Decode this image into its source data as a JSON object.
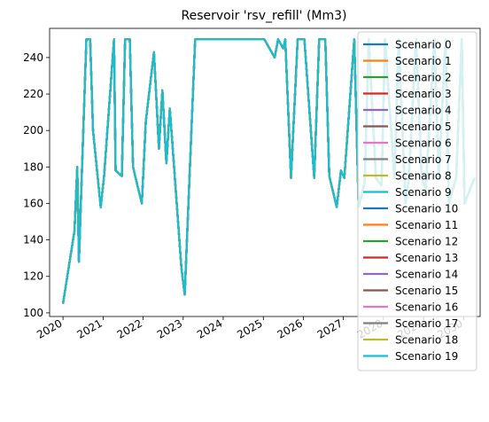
{
  "chart_data": {
    "type": "line",
    "title": "Reservoir 'rsv_refill' (Mm3)",
    "xlabel": "",
    "ylabel": "",
    "x_range": [
      "2019-09-01",
      "2030-06-01"
    ],
    "ylim": [
      98,
      256
    ],
    "x_tick_labels": [
      "2020",
      "2021",
      "2022",
      "2023",
      "2024",
      "2025",
      "2026",
      "2027",
      "2028",
      "2029",
      "2030"
    ],
    "y_ticks": [
      100,
      120,
      140,
      160,
      180,
      200,
      220,
      240
    ],
    "grid": false,
    "legend_position": "upper right",
    "x": [
      "2020-01-01",
      "2020-04-15",
      "2020-05-10",
      "2020-05-25",
      "2020-06-20",
      "2020-08-01",
      "2020-09-05",
      "2020-10-01",
      "2020-12-10",
      "2021-01-10",
      "2021-04-10",
      "2021-04-25",
      "2021-06-20",
      "2021-07-20",
      "2021-09-01",
      "2021-10-01",
      "2021-10-20",
      "2021-12-20",
      "2022-01-25",
      "2022-04-10",
      "2022-05-25",
      "2022-06-25",
      "2022-08-01",
      "2022-09-01",
      "2022-11-15",
      "2022-12-15",
      "2023-01-15",
      "2023-04-20",
      "2023-06-01",
      "2024-01-01",
      "2024-06-01",
      "2024-12-01",
      "2025-01-10",
      "2025-04-15",
      "2025-05-15",
      "2025-07-01",
      "2025-07-20",
      "2025-09-10",
      "2025-11-10",
      "2025-12-10",
      "2026-01-10",
      "2026-04-10",
      "2026-05-25",
      "2026-07-20",
      "2026-08-25",
      "2026-11-01",
      "2026-12-10",
      "2027-01-10",
      "2027-04-10",
      "2027-05-20",
      "2027-07-15",
      "2027-08-20",
      "2027-10-25",
      "2027-12-15",
      "2028-01-15",
      "2028-04-10",
      "2028-05-20",
      "2028-07-20",
      "2028-08-20",
      "2028-10-25",
      "2028-12-15",
      "2029-01-20",
      "2029-04-10",
      "2029-05-20",
      "2029-07-20",
      "2029-08-20",
      "2029-10-25",
      "2029-12-15",
      "2030-01-10",
      "2030-04-10"
    ],
    "y": [
      105,
      145,
      180,
      128,
      175,
      250,
      250,
      200,
      158,
      175,
      250,
      178,
      175,
      250,
      250,
      180,
      175,
      160,
      205,
      243,
      190,
      222,
      182,
      212,
      150,
      125,
      110,
      250,
      250,
      250,
      250,
      250,
      250,
      240,
      250,
      245,
      250,
      174,
      250,
      250,
      250,
      174,
      250,
      250,
      175,
      158,
      178,
      174,
      250,
      158,
      172,
      250,
      174,
      170,
      250,
      174,
      250,
      160,
      174,
      250,
      174,
      168,
      250,
      174,
      250,
      160,
      174,
      250,
      160,
      174
    ],
    "series": [
      {
        "name": "Scenario 0",
        "color": "#1f77b4"
      },
      {
        "name": "Scenario 1",
        "color": "#ff7f0e"
      },
      {
        "name": "Scenario 2",
        "color": "#2ca02c"
      },
      {
        "name": "Scenario 3",
        "color": "#d62728"
      },
      {
        "name": "Scenario 4",
        "color": "#9467bd"
      },
      {
        "name": "Scenario 5",
        "color": "#8c564b"
      },
      {
        "name": "Scenario 6",
        "color": "#e377c2"
      },
      {
        "name": "Scenario 7",
        "color": "#7f7f7f"
      },
      {
        "name": "Scenario 8",
        "color": "#bcbd22"
      },
      {
        "name": "Scenario 9",
        "color": "#17becf"
      },
      {
        "name": "Scenario 10",
        "color": "#1f77b4"
      },
      {
        "name": "Scenario 11",
        "color": "#ff7f0e"
      },
      {
        "name": "Scenario 12",
        "color": "#2ca02c"
      },
      {
        "name": "Scenario 13",
        "color": "#d62728"
      },
      {
        "name": "Scenario 14",
        "color": "#9467bd"
      },
      {
        "name": "Scenario 15",
        "color": "#8c564b"
      },
      {
        "name": "Scenario 16",
        "color": "#e377c2"
      },
      {
        "name": "Scenario 17",
        "color": "#7f7f7f"
      },
      {
        "name": "Scenario 18",
        "color": "#bcbd22"
      },
      {
        "name": "Scenario 19",
        "color": "#17becf"
      }
    ]
  }
}
